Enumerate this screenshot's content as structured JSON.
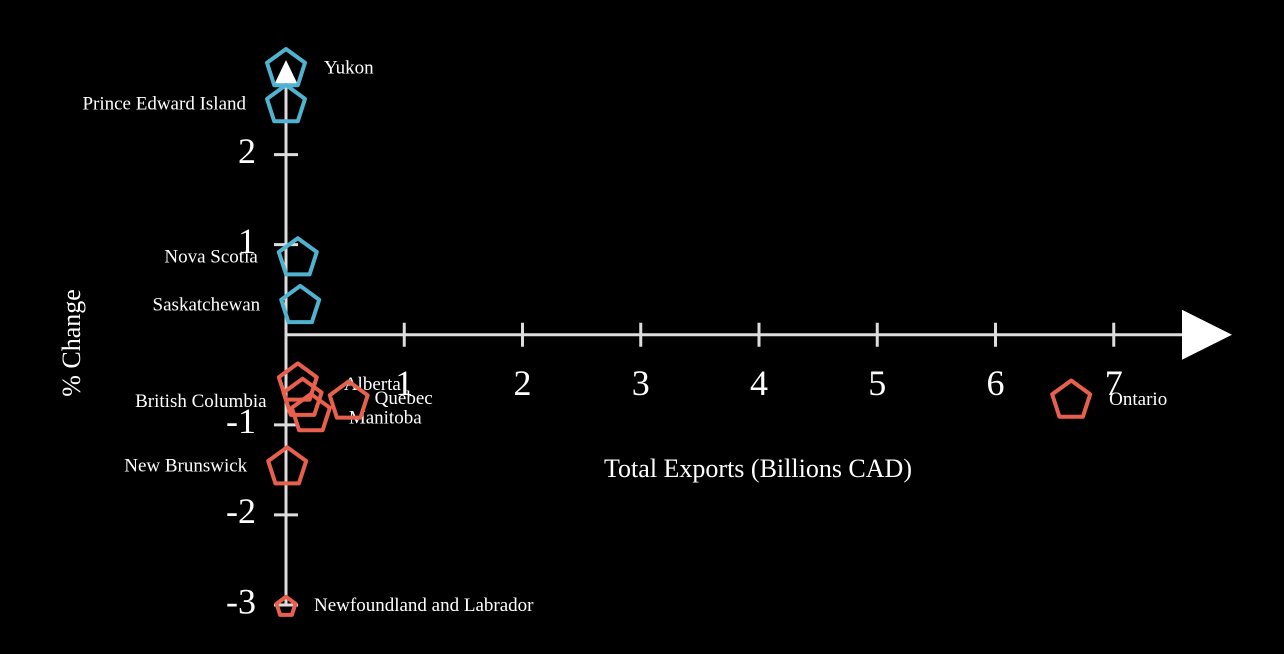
{
  "chart_data": {
    "type": "scatter",
    "x_label": "Total Exports (Billions CAD)",
    "y_label": "% Change",
    "labels": [
      "Yukon",
      "Prince Edward Island",
      "Nova Scotia",
      "Saskatchewan",
      "Alberta",
      "British Columbia",
      "Manitoba",
      "Quebec",
      "New Brunswick",
      "Ontario",
      "Newfoundland and Labrador"
    ],
    "x": [
      0.0,
      0.0,
      0.1,
      0.12,
      0.1,
      0.14,
      0.21,
      0.53,
      0.01,
      6.64,
      0.0
    ],
    "values": [
      2.95,
      2.55,
      0.85,
      0.32,
      -0.54,
      -0.71,
      -0.88,
      -0.74,
      -1.47,
      -0.73,
      -3.02
    ],
    "sizes": [
      20,
      20,
      20,
      20,
      20,
      20,
      20,
      20,
      20,
      20,
      10
    ],
    "colors": [
      "#4fb3cf",
      "#4fb3cf",
      "#4fb3cf",
      "#4fb3cf",
      "#e8604c",
      "#e8604c",
      "#e8604c",
      "#e8604c",
      "#e8604c",
      "#e8604c",
      "#e8604c"
    ],
    "xlim": [
      0,
      8
    ],
    "ylim": [
      -3,
      3.05
    ],
    "xticks": [
      1,
      2,
      3,
      4,
      5,
      6,
      7
    ],
    "yticks": [
      -3,
      -2,
      -1,
      1,
      2
    ]
  }
}
